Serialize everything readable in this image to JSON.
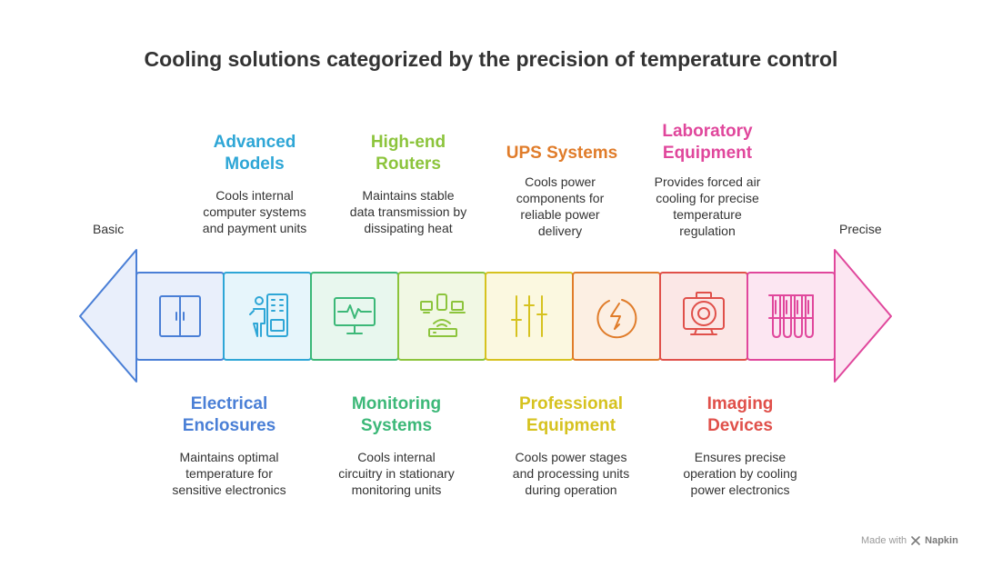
{
  "title": "Cooling solutions categorized by the precision of temperature control",
  "scale": {
    "left_label": "Basic",
    "right_label": "Precise"
  },
  "categories": [
    {
      "heading_line1": "Electrical",
      "heading_line2": "Enclosures",
      "color": "#4a7fd6",
      "fill": "#e9effb",
      "desc_line1": "Maintains optimal",
      "desc_line2": "temperature for",
      "desc_line3": "sensitive electronics",
      "desc_line4": "",
      "icon": "electrical-cabinet-icon"
    },
    {
      "heading_line1": "Advanced",
      "heading_line2": "Models",
      "color": "#2ea6d6",
      "fill": "#e6f5fb",
      "desc_line1": "Cools internal",
      "desc_line2": "computer systems",
      "desc_line3": "and payment units",
      "desc_line4": "",
      "icon": "person-kiosk-icon"
    },
    {
      "heading_line1": "Monitoring",
      "heading_line2": "Systems",
      "color": "#3cb878",
      "fill": "#e8f7ee",
      "desc_line1": "Cools internal",
      "desc_line2": "circuitry in stationary",
      "desc_line3": "monitoring units",
      "desc_line4": "",
      "icon": "heart-monitor-icon"
    },
    {
      "heading_line1": "High-end",
      "heading_line2": "Routers",
      "color": "#8cc43c",
      "fill": "#f1f8e4",
      "desc_line1": "Maintains stable",
      "desc_line2": "data transmission by",
      "desc_line3": "dissipating heat",
      "desc_line4": "",
      "icon": "router-devices-icon"
    },
    {
      "heading_line1": "Professional",
      "heading_line2": "Equipment",
      "color": "#d6c21f",
      "fill": "#fbf8e0",
      "desc_line1": "Cools power stages",
      "desc_line2": "and processing units",
      "desc_line3": "during operation",
      "desc_line4": "",
      "icon": "sliders-icon"
    },
    {
      "heading_line1": "UPS Systems",
      "heading_line2": "",
      "color": "#e07c2a",
      "fill": "#fcefe3",
      "desc_line1": "Cools power",
      "desc_line2": "components for",
      "desc_line3": "reliable power",
      "desc_line4": "delivery",
      "icon": "power-bolt-icon"
    },
    {
      "heading_line1": "Imaging",
      "heading_line2": "Devices",
      "color": "#e0504a",
      "fill": "#fbe7e6",
      "desc_line1": "Ensures precise",
      "desc_line2": "operation by cooling",
      "desc_line3": "power electronics",
      "desc_line4": "",
      "icon": "mri-scanner-icon"
    },
    {
      "heading_line1": "Laboratory",
      "heading_line2": "Equipment",
      "color": "#e0479c",
      "fill": "#fce6f2",
      "desc_line1": "Provides forced air",
      "desc_line2": "cooling for precise",
      "desc_line3": "temperature",
      "desc_line4": "regulation",
      "icon": "test-tubes-icon"
    }
  ],
  "footer": {
    "made_with": "Made with",
    "brand": "Napkin",
    "icon": "napkin-logo-icon"
  }
}
